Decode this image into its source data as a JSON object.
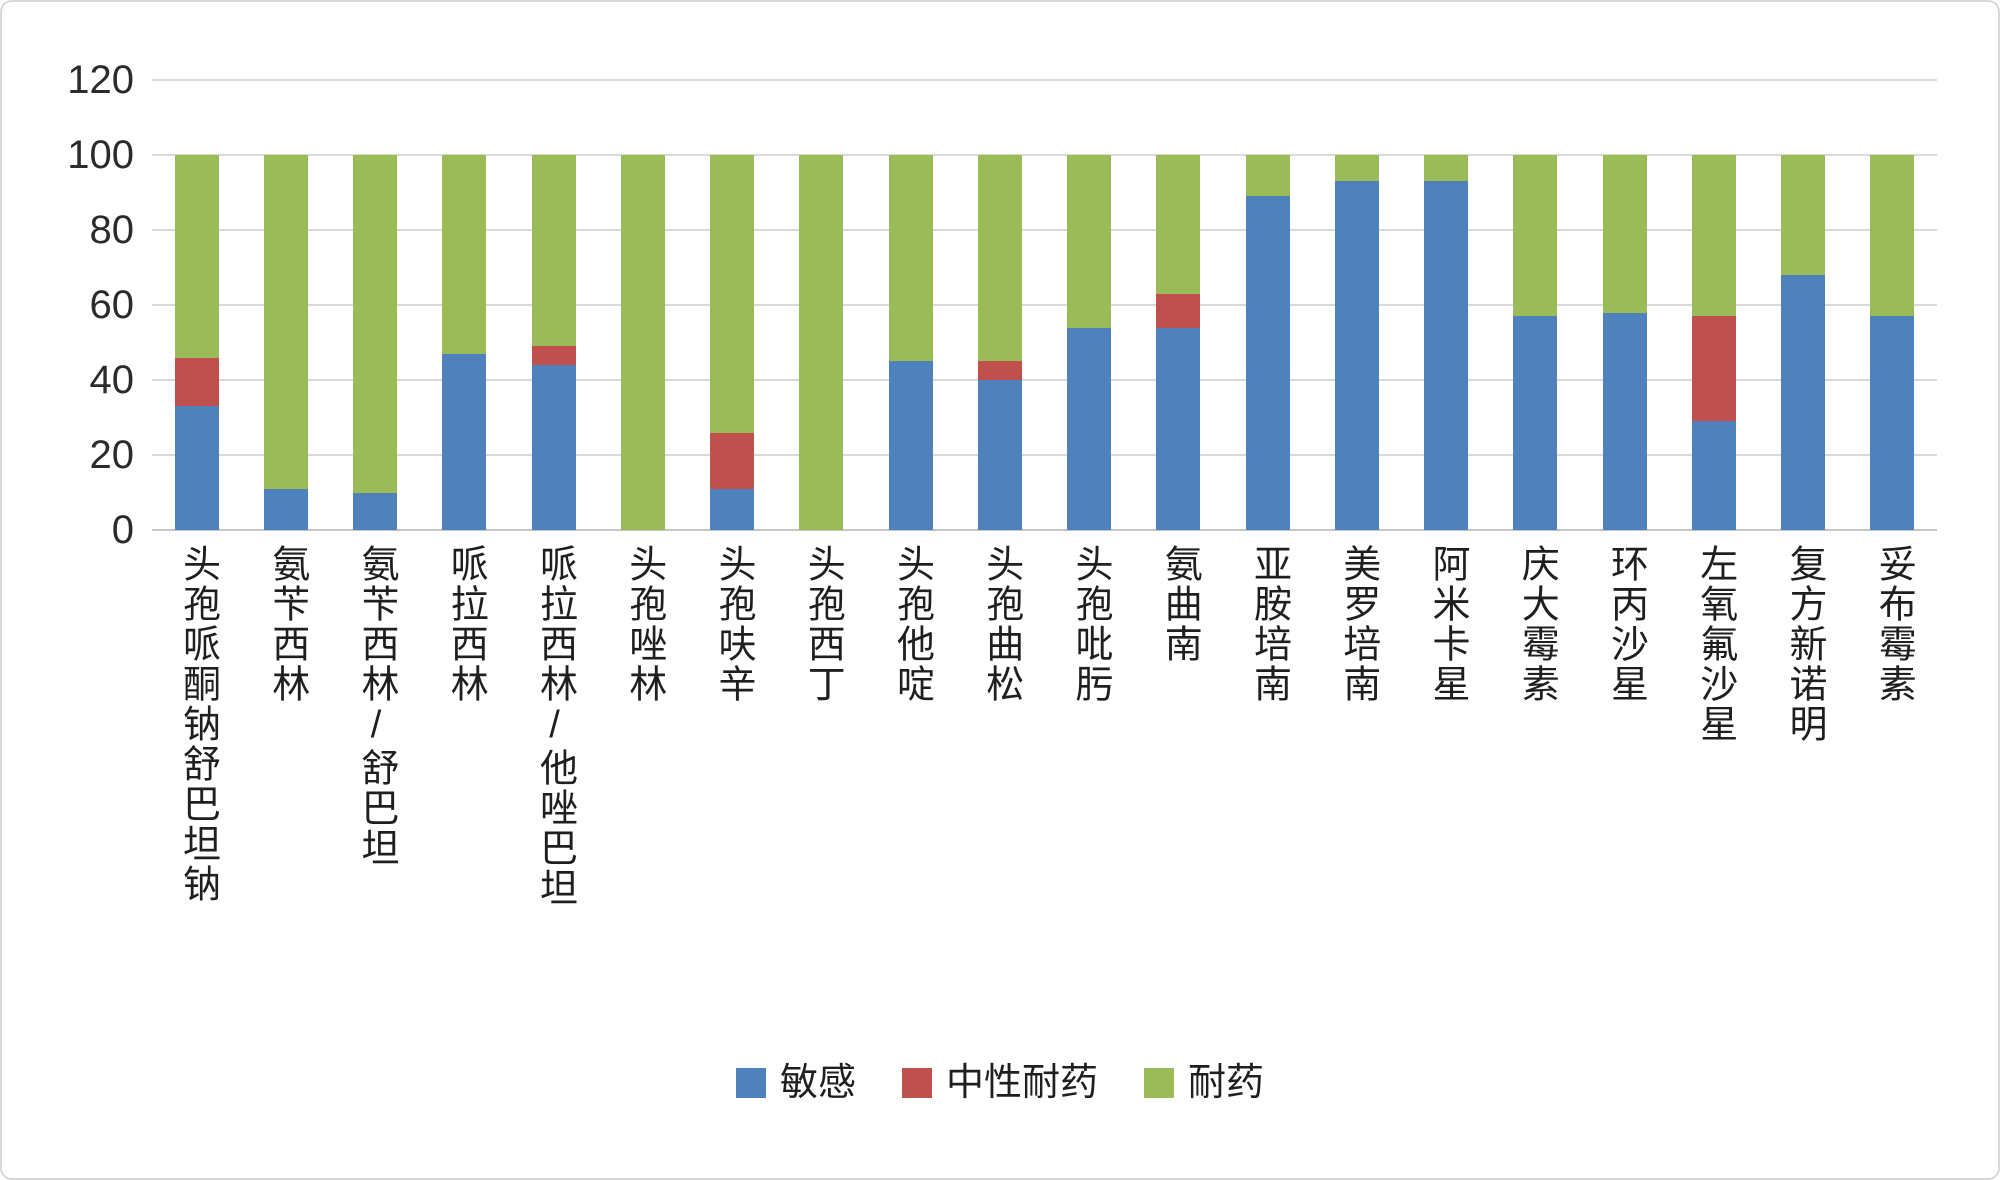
{
  "chart_data": {
    "type": "bar",
    "subtype": "stacked-100",
    "title": "",
    "xlabel": "",
    "ylabel": "",
    "grid": true,
    "legend_position": "bottom",
    "y_axis": {
      "min": 0,
      "max": 120,
      "step": 20,
      "ticks": [
        0,
        20,
        40,
        60,
        80,
        100,
        120
      ]
    },
    "categories": [
      "头孢哌酮钠舒巴坦钠",
      "氨苄西林",
      "氨苄西林/舒巴坦",
      "哌拉西林",
      "哌拉西林/他唑巴坦",
      "头孢唑林",
      "头孢呋辛",
      "头孢西丁",
      "头孢他啶",
      "头孢曲松",
      "头孢吡肟",
      "氨曲南",
      "亚胺培南",
      "美罗培南",
      "阿米卡星",
      "庆大霉素",
      "环丙沙星",
      "左氧氟沙星",
      "复方新诺明",
      "妥布霉素"
    ],
    "series": [
      {
        "name": "敏感",
        "key": "sensitive",
        "color": "#4F81BD",
        "values": [
          33,
          11,
          10,
          47,
          44,
          0,
          11,
          0,
          45,
          40,
          54,
          54,
          89,
          93,
          93,
          57,
          58,
          29,
          68,
          57
        ]
      },
      {
        "name": "中性耐药",
        "key": "intermediate",
        "color": "#C0504D",
        "values": [
          13,
          0,
          0,
          0,
          5,
          0,
          15,
          0,
          0,
          5,
          0,
          9,
          0,
          0,
          0,
          0,
          0,
          28,
          0,
          0
        ]
      },
      {
        "name": "耐药",
        "key": "resistant",
        "color": "#9BBB59",
        "values": [
          54,
          89,
          90,
          53,
          51,
          100,
          74,
          100,
          55,
          55,
          46,
          37,
          11,
          7,
          7,
          43,
          42,
          43,
          32,
          43
        ]
      }
    ]
  }
}
